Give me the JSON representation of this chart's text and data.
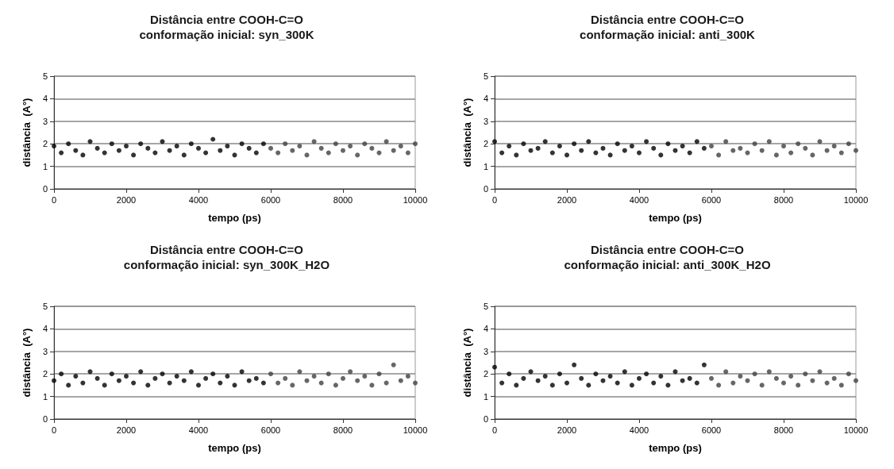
{
  "chart_data": [
    {
      "type": "scatter",
      "title": "Distância entre COOH-C=O",
      "subtitle": "conformação inicial: syn_300K",
      "xlabel": "tempo (ps)",
      "ylabel": "distância  (A°)",
      "xlim": [
        0,
        10000
      ],
      "xticks": [
        0,
        2000,
        4000,
        6000,
        8000,
        10000
      ],
      "ylim": [
        0,
        5
      ],
      "yticks": [
        0,
        1,
        2,
        3,
        4,
        5
      ],
      "grid": "y",
      "marker": "circle",
      "series": [
        {
          "color": "#000000",
          "x": [
            0,
            200,
            400,
            600,
            800,
            1000,
            1200,
            1400,
            1600,
            1800,
            2000,
            2200,
            2400,
            2600,
            2800,
            3000,
            3200,
            3400,
            3600,
            3800,
            4000,
            4200,
            4400,
            4600,
            4800,
            5000,
            5200,
            5400,
            5600,
            5800
          ],
          "values": [
            1.9,
            1.6,
            2.0,
            1.7,
            1.5,
            2.1,
            1.8,
            1.6,
            2.0,
            1.7,
            1.9,
            1.5,
            2.0,
            1.8,
            1.6,
            2.1,
            1.7,
            1.9,
            1.5,
            2.0,
            1.8,
            1.6,
            2.2,
            1.7,
            1.9,
            1.5,
            2.0,
            1.8,
            1.6,
            2.0
          ]
        },
        {
          "color": "#404040",
          "x": [
            6000,
            6200,
            6400,
            6600,
            6800,
            7000,
            7200,
            7400,
            7600,
            7800,
            8000,
            8200,
            8400,
            8600,
            8800,
            9000,
            9200,
            9400,
            9600,
            9800,
            10000
          ],
          "values": [
            1.8,
            1.6,
            2.0,
            1.7,
            1.9,
            1.5,
            2.1,
            1.8,
            1.6,
            2.0,
            1.7,
            1.9,
            1.5,
            2.0,
            1.8,
            1.6,
            2.1,
            1.7,
            1.9,
            1.6,
            2.0
          ]
        }
      ]
    },
    {
      "type": "scatter",
      "title": "Distância entre COOH-C=O",
      "subtitle": "conformação inicial: anti_300K",
      "xlabel": "tempo (ps)",
      "ylabel": "distância  (A°)",
      "xlim": [
        0,
        10000
      ],
      "xticks": [
        0,
        2000,
        4000,
        6000,
        8000,
        10000
      ],
      "ylim": [
        0,
        5
      ],
      "yticks": [
        0,
        1,
        2,
        3,
        4,
        5
      ],
      "grid": "y",
      "marker": "circle",
      "series": [
        {
          "color": "#000000",
          "x": [
            0,
            200,
            400,
            600,
            800,
            1000,
            1200,
            1400,
            1600,
            1800,
            2000,
            2200,
            2400,
            2600,
            2800,
            3000,
            3200,
            3400,
            3600,
            3800,
            4000,
            4200,
            4400,
            4600,
            4800,
            5000,
            5200,
            5400,
            5600,
            5800
          ],
          "values": [
            2.1,
            1.6,
            1.9,
            1.5,
            2.0,
            1.7,
            1.8,
            2.1,
            1.6,
            1.9,
            1.5,
            2.0,
            1.7,
            2.1,
            1.6,
            1.8,
            1.5,
            2.0,
            1.7,
            1.9,
            1.6,
            2.1,
            1.8,
            1.5,
            2.0,
            1.7,
            1.9,
            1.6,
            2.1,
            1.8
          ]
        },
        {
          "color": "#404040",
          "x": [
            6000,
            6200,
            6400,
            6600,
            6800,
            7000,
            7200,
            7400,
            7600,
            7800,
            8000,
            8200,
            8400,
            8600,
            8800,
            9000,
            9200,
            9400,
            9600,
            9800,
            10000
          ],
          "values": [
            1.9,
            1.5,
            2.1,
            1.7,
            1.8,
            1.6,
            2.0,
            1.7,
            2.1,
            1.5,
            1.9,
            1.6,
            2.0,
            1.8,
            1.5,
            2.1,
            1.7,
            1.9,
            1.6,
            2.0,
            1.7
          ]
        }
      ]
    },
    {
      "type": "scatter",
      "title": "Distância entre COOH-C=O",
      "subtitle": "conformação inicial: syn_300K_H2O",
      "xlabel": "tempo (ps)",
      "ylabel": "distância  (A°)",
      "xlim": [
        0,
        10000
      ],
      "xticks": [
        0,
        2000,
        4000,
        6000,
        8000,
        10000
      ],
      "ylim": [
        0,
        5
      ],
      "yticks": [
        0,
        1,
        2,
        3,
        4,
        5
      ],
      "grid": "y",
      "marker": "circle",
      "series": [
        {
          "color": "#000000",
          "x": [
            0,
            200,
            400,
            600,
            800,
            1000,
            1200,
            1400,
            1600,
            1800,
            2000,
            2200,
            2400,
            2600,
            2800,
            3000,
            3200,
            3400,
            3600,
            3800,
            4000,
            4200,
            4400,
            4600,
            4800,
            5000,
            5200,
            5400,
            5600,
            5800
          ],
          "values": [
            1.7,
            2.0,
            1.5,
            1.9,
            1.6,
            2.1,
            1.8,
            1.5,
            2.0,
            1.7,
            1.9,
            1.6,
            2.1,
            1.5,
            1.8,
            2.0,
            1.6,
            1.9,
            1.7,
            2.1,
            1.5,
            1.8,
            2.0,
            1.6,
            1.9,
            1.5,
            2.1,
            1.7,
            1.8,
            1.6
          ]
        },
        {
          "color": "#404040",
          "x": [
            6000,
            6200,
            6400,
            6600,
            6800,
            7000,
            7200,
            7400,
            7600,
            7800,
            8000,
            8200,
            8400,
            8600,
            8800,
            9000,
            9200,
            9400,
            9600,
            9800,
            10000
          ],
          "values": [
            2.0,
            1.6,
            1.8,
            1.5,
            2.1,
            1.7,
            1.9,
            1.6,
            2.0,
            1.5,
            1.8,
            2.1,
            1.7,
            1.9,
            1.5,
            2.0,
            1.6,
            2.4,
            1.7,
            1.9,
            1.6
          ]
        }
      ]
    },
    {
      "type": "scatter",
      "title": "Distância entre COOH-C=O",
      "subtitle": "conformação inicial: anti_300K_H2O",
      "xlabel": "tempo (ps)",
      "ylabel": "distância  (A°)",
      "xlim": [
        0,
        10000
      ],
      "xticks": [
        0,
        2000,
        4000,
        6000,
        8000,
        10000
      ],
      "ylim": [
        0,
        5
      ],
      "yticks": [
        0,
        1,
        2,
        3,
        4,
        5
      ],
      "grid": "y",
      "marker": "circle",
      "series": [
        {
          "color": "#000000",
          "x": [
            0,
            200,
            400,
            600,
            800,
            1000,
            1200,
            1400,
            1600,
            1800,
            2000,
            2200,
            2400,
            2600,
            2800,
            3000,
            3200,
            3400,
            3600,
            3800,
            4000,
            4200,
            4400,
            4600,
            4800,
            5000,
            5200,
            5400,
            5600,
            5800
          ],
          "values": [
            2.3,
            1.6,
            2.0,
            1.5,
            1.8,
            2.1,
            1.7,
            1.9,
            1.5,
            2.0,
            1.6,
            2.4,
            1.8,
            1.5,
            2.0,
            1.7,
            1.9,
            1.6,
            2.1,
            1.5,
            1.8,
            2.0,
            1.6,
            1.9,
            1.5,
            2.1,
            1.7,
            1.8,
            1.6,
            2.4
          ]
        },
        {
          "color": "#404040",
          "x": [
            6000,
            6200,
            6400,
            6600,
            6800,
            7000,
            7200,
            7400,
            7600,
            7800,
            8000,
            8200,
            8400,
            8600,
            8800,
            9000,
            9200,
            9400,
            9600,
            9800,
            10000
          ],
          "values": [
            1.8,
            1.5,
            2.1,
            1.6,
            1.9,
            1.7,
            2.0,
            1.5,
            2.1,
            1.8,
            1.6,
            1.9,
            1.5,
            2.0,
            1.7,
            2.1,
            1.6,
            1.8,
            1.5,
            2.0,
            1.7
          ]
        }
      ]
    }
  ]
}
